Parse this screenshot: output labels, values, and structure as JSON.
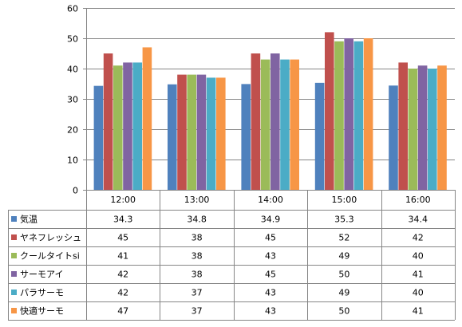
{
  "chart_data": {
    "type": "bar",
    "title": "",
    "xlabel": "",
    "ylabel": "",
    "ylim": [
      0,
      60
    ],
    "y_ticks": [
      0,
      10,
      20,
      30,
      40,
      50,
      60
    ],
    "grid": true,
    "legend": "data-table",
    "categories": [
      "12:00",
      "13:00",
      "14:00",
      "15:00",
      "16:00"
    ],
    "series": [
      {
        "name": "気温",
        "color": "#4f81bd",
        "values": [
          34.3,
          34.8,
          34.9,
          35.3,
          34.4
        ]
      },
      {
        "name": "ヤネフレッシュ",
        "color": "#c0504d",
        "values": [
          45,
          38,
          45,
          52,
          42
        ]
      },
      {
        "name": "クールタイトsi",
        "color": "#9bbb59",
        "values": [
          41,
          38,
          43,
          49,
          40
        ]
      },
      {
        "name": "サーモアイ",
        "color": "#8064a2",
        "values": [
          42,
          38,
          45,
          50,
          41
        ]
      },
      {
        "name": "パラサーモ",
        "color": "#4bacc6",
        "values": [
          42,
          37,
          43,
          49,
          40
        ]
      },
      {
        "name": "快適サーモ",
        "color": "#f79646",
        "values": [
          47,
          37,
          43,
          50,
          41
        ]
      }
    ],
    "table_values": [
      [
        "34.3",
        "34.8",
        "34.9",
        "35.3",
        "34.4"
      ],
      [
        "45",
        "38",
        "45",
        "52",
        "42"
      ],
      [
        "41",
        "38",
        "43",
        "49",
        "40"
      ],
      [
        "42",
        "38",
        "45",
        "50",
        "41"
      ],
      [
        "42",
        "37",
        "43",
        "49",
        "40"
      ],
      [
        "47",
        "37",
        "43",
        "50",
        "41"
      ]
    ]
  }
}
